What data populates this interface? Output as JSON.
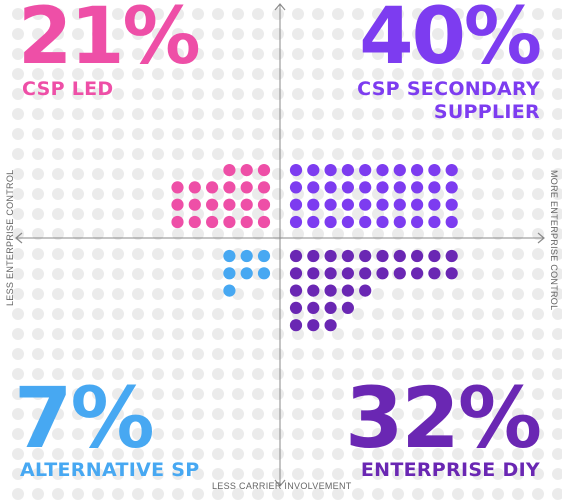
{
  "chart_data": {
    "type": "waffle-quadrant",
    "quadrants": [
      {
        "id": "top-left",
        "percent_label": "21%",
        "label": "CSP LED",
        "value": 21,
        "color": "#ee4fa7"
      },
      {
        "id": "top-right",
        "percent_label": "40%",
        "label_lines": [
          "CSP SECONDARY",
          "SUPPLIER"
        ],
        "value": 40,
        "color": "#7d3cf0"
      },
      {
        "id": "bottom-left",
        "percent_label": "7%",
        "label": "ALTERNATIVE SP",
        "value": 7,
        "color": "#47a8f2"
      },
      {
        "id": "bottom-right",
        "percent_label": "32%",
        "label": "ENTERPRISE DIY",
        "value": 32,
        "color": "#6a27b3"
      }
    ],
    "axes": {
      "x_bottom": "LESS CARRIER INVOLVEMENT",
      "y_left": "LESS ENTERPRISE CONTROL",
      "y_right": "MORE ENTERPRISE CONTROL"
    },
    "colors": {
      "background_dot": "#ebebeb",
      "axis": "#8a8a8a"
    }
  }
}
